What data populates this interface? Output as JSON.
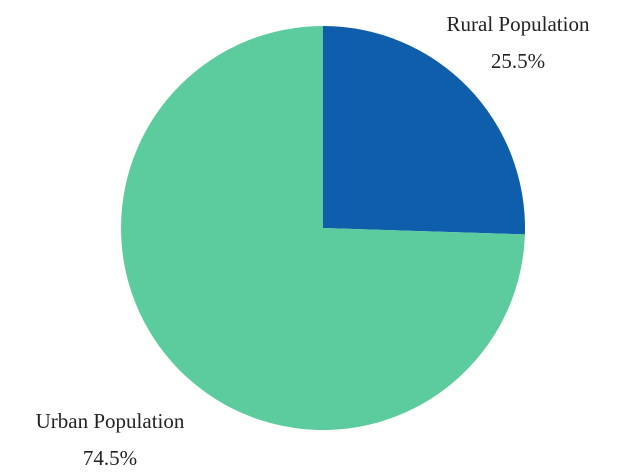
{
  "chart_data": {
    "type": "pie",
    "title": "",
    "slices": [
      {
        "label": "Rural Population",
        "value": 25.5,
        "value_label": "25.5%",
        "color": "#0e5eab"
      },
      {
        "label": "Urban Population",
        "value": 74.5,
        "value_label": "74.5%",
        "color": "#5ccc9e"
      }
    ],
    "start_angle": "12 o'clock",
    "direction": "clockwise",
    "legend": "none"
  }
}
